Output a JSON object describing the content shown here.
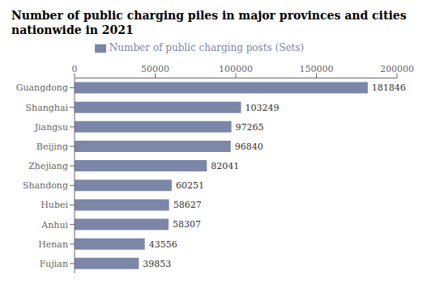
{
  "chart_data": {
    "type": "bar",
    "orientation": "horizontal",
    "title": "Number of public charging piles in major provinces and cities nationwide in 2021",
    "categories": [
      "Guangdong",
      "Shanghai",
      "Jiangsu",
      "Beijing",
      "Zhejiang",
      "Shandong",
      "Hubei",
      "Anhui",
      "Henan",
      "Fujian"
    ],
    "series": [
      {
        "name": "Number of public charging posts (Sets)",
        "color": "#7B86A8",
        "values": [
          181846,
          103249,
          97265,
          96840,
          82041,
          60251,
          58627,
          58307,
          43556,
          39853
        ]
      }
    ],
    "xlim": [
      0,
      200000
    ],
    "xticks": [
      0,
      50000,
      100000,
      150000,
      200000
    ],
    "data_labels": true,
    "legend": "top",
    "grid": false
  }
}
